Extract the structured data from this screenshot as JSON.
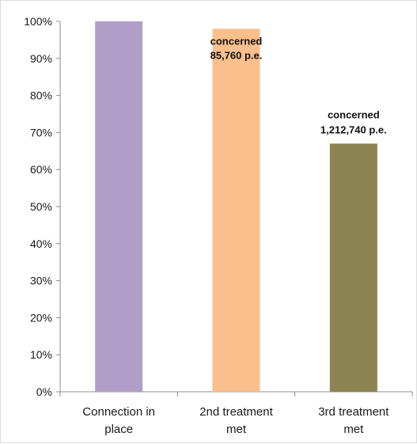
{
  "chart_data": {
    "type": "bar",
    "categories": [
      "Connection in place",
      "2nd treatment met",
      "3rd treatment met"
    ],
    "category_lines": [
      [
        "Connection in",
        "place"
      ],
      [
        "2nd treatment",
        "met"
      ],
      [
        "3rd treatment",
        "met"
      ]
    ],
    "values": [
      100,
      98,
      67
    ],
    "colors": [
      "#b09ec8",
      "#f9bf8c",
      "#8b8450"
    ],
    "data_labels": [
      null,
      {
        "line1": "concerned",
        "line2": "85,760 p.e."
      },
      {
        "line1": "concerned",
        "line2": "1,212,740 p.e."
      }
    ],
    "ylim": [
      0,
      100
    ],
    "yticks": [
      0,
      10,
      20,
      30,
      40,
      50,
      60,
      70,
      80,
      90,
      100
    ],
    "ytick_suffix": "%",
    "grid": false,
    "legend": false
  }
}
